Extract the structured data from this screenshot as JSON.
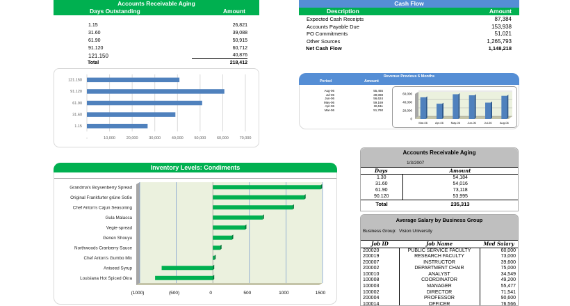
{
  "ar_aging": {
    "title": "Accounts Receivable Aging",
    "col_days": "Days Outstanding",
    "col_amount": "Amount",
    "rows": [
      {
        "days": "1.15",
        "amount": "26,821"
      },
      {
        "days": "31.60",
        "amount": "39,088"
      },
      {
        "days": "61.90",
        "amount": "50,915"
      },
      {
        "days": "91.120",
        "amount": "60,712"
      },
      {
        "days": "121.150",
        "amount": "40,876"
      }
    ],
    "total_label": "Total",
    "total": "218,412"
  },
  "cash_flow": {
    "title": "Cash Flow",
    "col_desc": "Description",
    "col_amount": "Amount",
    "rows": [
      {
        "desc": "Expected Cash Receipts",
        "amount": "87,384"
      },
      {
        "desc": "Accounts Payable Due",
        "amount": "153,938"
      },
      {
        "desc": "PO Commitments",
        "amount": "51,021"
      },
      {
        "desc": "Other Sources",
        "amount": "1,265,793"
      }
    ],
    "total_label": "Net Cash Flow",
    "total": "1,148,218"
  },
  "revenue": {
    "title": "Revenue Previous 6 Months",
    "col_period": "Period",
    "col_amount": "Amount",
    "rows": [
      {
        "period": "Aug-06",
        "amount": "55,465"
      },
      {
        "period": "Jul-06",
        "amount": "39,088"
      },
      {
        "period": "Jun-06",
        "amount": "56,624"
      },
      {
        "period": "May-06",
        "amount": "59,169"
      },
      {
        "period": "Apr-06",
        "amount": "36,511"
      },
      {
        "period": "Mar-06",
        "amount": "51,760"
      }
    ]
  },
  "inventory": {
    "title": "Inventory Levels: Condiments"
  },
  "ar_aging2": {
    "title": "Accounts Receivable Aging",
    "date": "1/3/2007",
    "col_days": "Days",
    "col_amount": "Amount",
    "rows": [
      {
        "days": "1.30",
        "amount": "54,184"
      },
      {
        "days": "31.60",
        "amount": "54,016"
      },
      {
        "days": "61.90",
        "amount": "73,118"
      },
      {
        "days": "90.120",
        "amount": "53,995"
      }
    ],
    "total_label": "Total",
    "total": "235,313"
  },
  "salary": {
    "title": "Average Salary by Business Group",
    "group_label": "Business Group:",
    "group_value": "Vision University",
    "col_id": "Job ID",
    "col_name": "Job Name",
    "col_salary": "Med Salary",
    "rows": [
      {
        "id": "200020",
        "name": "PUBLIC SERVICE FACULTY",
        "salary": "60,000"
      },
      {
        "id": "200019",
        "name": "RESEARCH FACULTY",
        "salary": "73,000"
      },
      {
        "id": "200007",
        "name": "INSTRUCTOR",
        "salary": "39,600"
      },
      {
        "id": "200002",
        "name": "DEPARTMENT CHAIR",
        "salary": "75,000"
      },
      {
        "id": "100010",
        "name": "ANALYST",
        "salary": "34,549"
      },
      {
        "id": "100008",
        "name": "COORDINATOR",
        "salary": "49,200"
      },
      {
        "id": "100003",
        "name": "MANAGER",
        "salary": "55,477"
      },
      {
        "id": "100002",
        "name": "DIRECTOR",
        "salary": "71,541"
      },
      {
        "id": "200004",
        "name": "PROFESSOR",
        "salary": "90,600"
      },
      {
        "id": "100014",
        "name": "OFFICER",
        "salary": "76,566"
      }
    ]
  },
  "colors": {
    "green": "#00b050",
    "blue": "#558ed5",
    "bar_blue": "#4f81bd",
    "gray": "#bfbfbf",
    "plot_bg": "#ebf1de"
  },
  "chart_data": [
    {
      "type": "bar",
      "orientation": "horizontal",
      "categories": [
        "1.15",
        "31.60",
        "61.90",
        "91.120",
        "121.150"
      ],
      "values": [
        26821,
        39088,
        50915,
        60712,
        40876
      ],
      "xlim": [
        0,
        70000
      ],
      "xticks": [
        "-",
        "10,000",
        "20,000",
        "30,000",
        "40,000",
        "50,000",
        "60,000",
        "70,000"
      ],
      "grid": true,
      "legend": "none"
    },
    {
      "type": "bar",
      "orientation": "vertical",
      "style": "3d",
      "categories": [
        "Mar-06",
        "Apr-06",
        "May-06",
        "Jun-06",
        "Jul-06",
        "Aug-06"
      ],
      "values": [
        51760,
        36511,
        59169,
        56624,
        39088,
        55465
      ],
      "ylim": [
        0,
        60000
      ],
      "yticks": [
        "0",
        "20,000",
        "40,000",
        "60,000"
      ],
      "grid": true,
      "legend": "none"
    },
    {
      "type": "bar",
      "orientation": "horizontal",
      "style": "3d",
      "categories": [
        "Grandma's Boysenberry Spread",
        "Original Frankfurter grüne Soße",
        "Chef Anton's Cajun Seasoning",
        "Gula Malacca",
        "Vegie-spread",
        "Genen Shouyu",
        "Northwoods Cranberry Sauce",
        "Chef Anton's Gumbo Mix",
        "Aniseed Syrup",
        "Louisiana Hot Spiced Okra"
      ],
      "values": [
        1475,
        1250,
        1090,
        680,
        440,
        260,
        100,
        20,
        -700,
        -790
      ],
      "xlim": [
        -1000,
        1500
      ],
      "xticks": [
        "(1000)",
        "(500)",
        "0",
        "500",
        "1000",
        "1500"
      ],
      "grid": true,
      "legend": "none"
    }
  ]
}
